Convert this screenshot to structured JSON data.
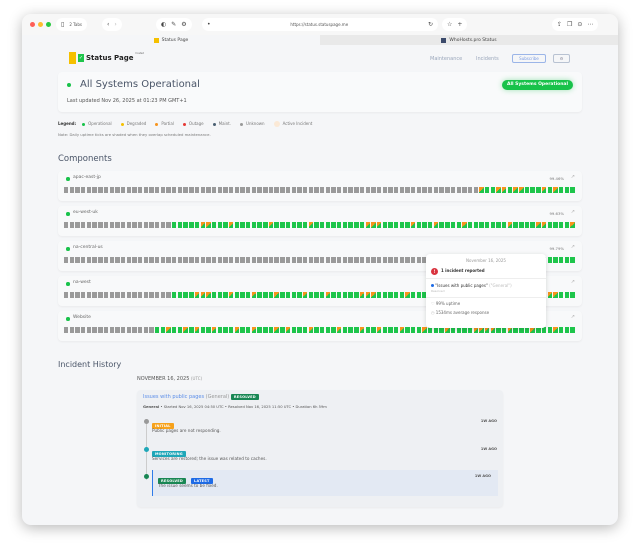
{
  "browser": {
    "tabs_count": "2 Tabs",
    "url": "https://status.statuspage.me",
    "tabs": [
      {
        "label": "Status Page"
      },
      {
        "label": "WhoHosts.pro Status"
      }
    ]
  },
  "header": {
    "logo_text": "Status Page",
    "logo_sup": "hosted",
    "nav": [
      "Maintenance",
      "Incidents"
    ],
    "subscribe": "Subscribe",
    "settings_icon": "gear-icon"
  },
  "status": {
    "title": "All Systems Operational",
    "updated": "Last updated Nov 26, 2025 at 01:23 PM GMT+1",
    "badge": "All Systems Operational",
    "color": "#18c24a"
  },
  "legend": {
    "label": "Legend:",
    "items": [
      {
        "label": "Operational",
        "color": "#18c24a"
      },
      {
        "label": "Degraded",
        "color": "#f5c000"
      },
      {
        "label": "Partial",
        "color": "#f7941d"
      },
      {
        "label": "Outage",
        "color": "#e53935"
      },
      {
        "label": "Maint.",
        "color": "#4a6072"
      },
      {
        "label": "Unknown",
        "color": "#999999"
      },
      {
        "label": "Active Incident",
        "color": "#fbe9d6"
      }
    ],
    "note": "Note: Daily uptime ticks are shaded when they overlap scheduled maintenance."
  },
  "components_title": "Components",
  "components": [
    {
      "name": "apac-east-jp",
      "uptime": "99.46%",
      "ticks": "uuuuuuuuuuuuuuuuuuuuuuuuuuuuuuuuuuuuuuuuuuuuuuuuuuuuuuuuuuuuuuuuuuuuuuuuupggppgppgggpgpggg"
    },
    {
      "name": "eu-west-uk",
      "uptime": "99.63%",
      "ticks": "uuuuuuuuuuuuuuuuuuugggggppgggpggggggpggggggpgggggggggpppgggggpgggpggggpgggggggpggggppggggpgg"
    },
    {
      "name": "na-central-us",
      "uptime": "99.79%",
      "ticks": "uuuuuuuuuuuuuuuuuuuuuuuuuuuuuuuuuuuuuuuuuuuuuuuuuuuuuuuuuuuuuuuuuuuuuuuuuuuuugggggggggggggg"
    },
    {
      "name": "na-west",
      "uptime": "",
      "ticks": "uuuuuuuuuuuuuuuuuuuggggpppgggpgggpgggpggggpgggpgggggpppgggggpgggpggggpgggggggpgggpgggppgg"
    },
    {
      "name": "Website",
      "uptime": "",
      "ticks": "uuuuuuuuuuuuuuuuggpggpgpggpgggpggpgggpgpgggpggggpgggpggpgggpgggpgggpggggppppggpgggpgggpgg"
    }
  ],
  "tooltip": {
    "date": "November 16, 2025",
    "count": "1 incident reported",
    "incident": "\"Issues with public pages\"",
    "incident_group": "(\"General\")",
    "incident_status": "Resolved",
    "uptime": "99% uptime",
    "response": "1534ms average response"
  },
  "history": {
    "title": "Incident History",
    "date": "NOVEMBER 16, 2025",
    "tz": "(UTC)",
    "incident": {
      "title": "Issues with public pages",
      "group": "(General)",
      "badge": "RESOLVED",
      "meta_group": "General",
      "meta": " • Started Nov 16, 2025 04:50 UTC • Resolved Nov 16, 2025 11:50 UTC • Duration 6h 59m",
      "updates": [
        {
          "badge": "INITIAL",
          "color": "#f7a21b",
          "dot": "#999999",
          "text": "Public pages are not responding.",
          "ago": "1W AGO"
        },
        {
          "badge": "MONITORING",
          "color": "#1fa7b8",
          "dot": "#1fa7b8",
          "text": "Services are restored; the issue was related to caches.",
          "ago": "1W AGO"
        },
        {
          "badge": "RESOLVED",
          "badge2": "LATEST",
          "color": "#198754",
          "dot": "#198754",
          "text": "The issue seems to be fixed.",
          "ago": "1W AGO"
        }
      ]
    }
  }
}
